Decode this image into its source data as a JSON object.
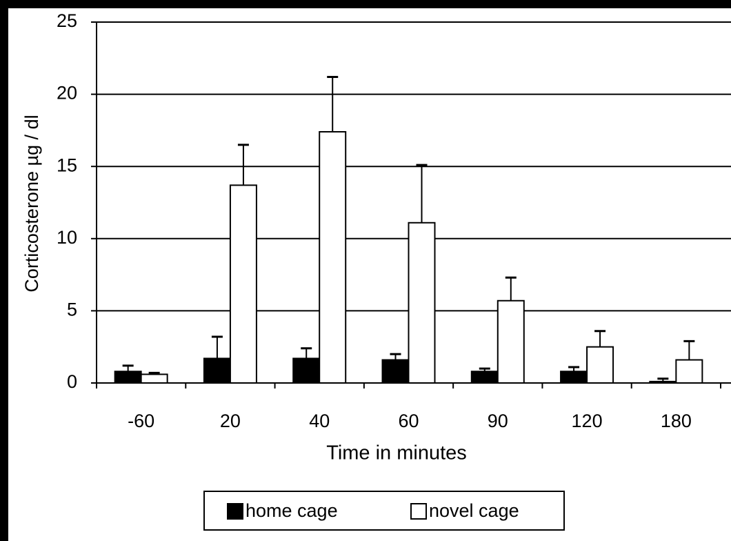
{
  "chart_data": {
    "type": "bar",
    "categories": [
      "-60",
      "20",
      "40",
      "60",
      "90",
      "120",
      "180"
    ],
    "series": [
      {
        "name": "home cage",
        "color": "#000000",
        "values": [
          0.8,
          1.7,
          1.7,
          1.6,
          0.8,
          0.8,
          0.1
        ],
        "errors": [
          0.4,
          1.5,
          0.7,
          0.4,
          0.2,
          0.3,
          0.2
        ]
      },
      {
        "name": "novel cage",
        "color": "#ffffff",
        "values": [
          0.6,
          13.7,
          17.4,
          11.1,
          5.7,
          2.5,
          1.6
        ],
        "errors": [
          0.1,
          2.8,
          3.8,
          4.0,
          1.6,
          1.1,
          1.3
        ]
      }
    ],
    "x_label": "Time in minutes",
    "y_label": "Corticosterone µg / dl",
    "ylim": [
      0,
      25
    ],
    "yticks": [
      0,
      5,
      10,
      15,
      20,
      25
    ],
    "grid": true,
    "legend": "bottom"
  }
}
